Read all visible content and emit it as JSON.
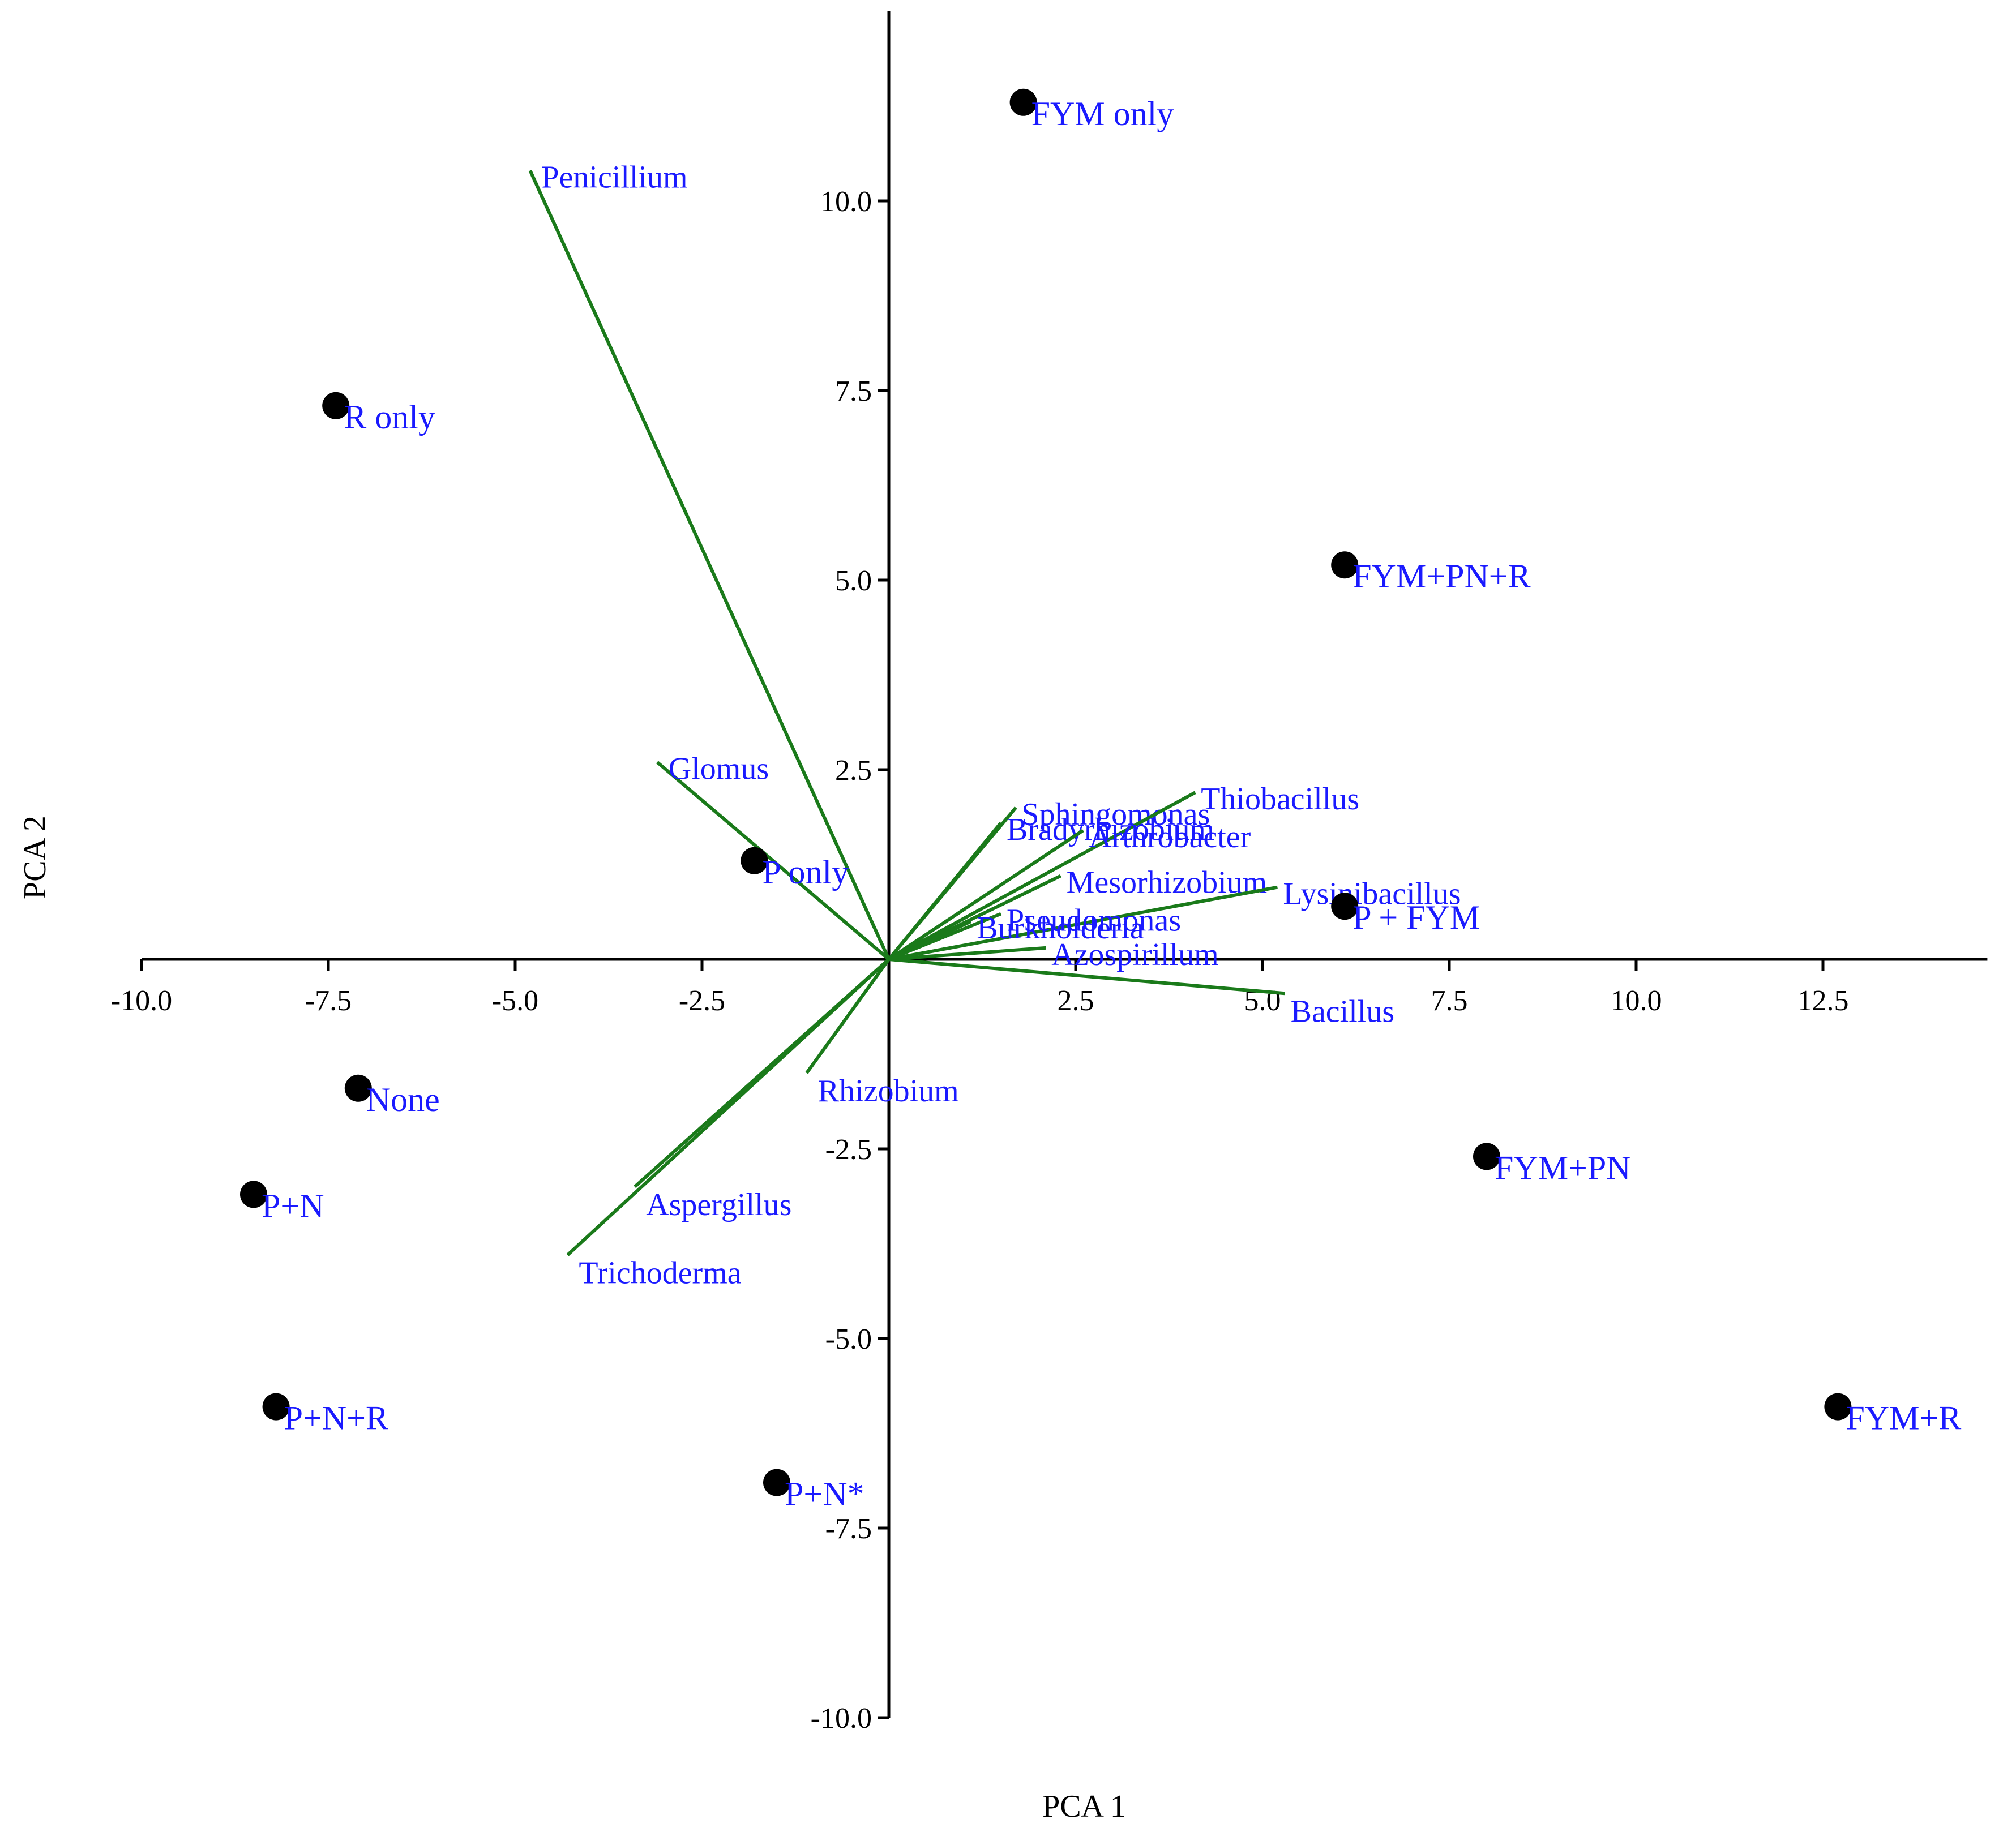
{
  "chart_data": {
    "type": "scatter",
    "xlabel": "PCA 1",
    "ylabel": "PCA 2",
    "xlim": [
      -10.0,
      14.7
    ],
    "ylim": [
      -10.0,
      12.5
    ],
    "x_ticks": [
      "-10.0",
      "-7.5",
      "-5.0",
      "-2.5",
      "2.5",
      "5.0",
      "7.5",
      "10.0",
      "12.5"
    ],
    "y_ticks": [
      "-10.0",
      "-7.5",
      "-5.0",
      "-2.5",
      "2.5",
      "5.0",
      "7.5",
      "10.0"
    ],
    "points": [
      {
        "label": "FYM only",
        "x": 1.8,
        "y": 11.3
      },
      {
        "label": "R only",
        "x": -7.4,
        "y": 7.3
      },
      {
        "label": "FYM+PN+R",
        "x": 6.1,
        "y": 5.2
      },
      {
        "label": "P only",
        "x": -1.8,
        "y": 1.3
      },
      {
        "label": "P + FYM",
        "x": 6.1,
        "y": 0.7
      },
      {
        "label": "None",
        "x": -7.1,
        "y": -1.7
      },
      {
        "label": "P+N",
        "x": -8.5,
        "y": -3.1
      },
      {
        "label": "FYM+PN",
        "x": 8.0,
        "y": -2.6
      },
      {
        "label": "P+N+R",
        "x": -8.2,
        "y": -5.9
      },
      {
        "label": "FYM+R",
        "x": 12.7,
        "y": -5.9
      },
      {
        "label": "P+N*",
        "x": -1.5,
        "y": -6.9
      }
    ],
    "vectors": [
      {
        "label": "Penicillium",
        "x": -4.8,
        "y": 10.4
      },
      {
        "label": "Glomus",
        "x": -3.1,
        "y": 2.6
      },
      {
        "label": "Sphingomonas",
        "x": 1.7,
        "y": 2.0
      },
      {
        "label": "Thiobacillus",
        "x": 4.1,
        "y": 2.2
      },
      {
        "label": "Bradyrhizobium",
        "x": 1.5,
        "y": 1.8
      },
      {
        "label": "Arthrobacter",
        "x": 2.6,
        "y": 1.7
      },
      {
        "label": "Mesorhizobium",
        "x": 2.3,
        "y": 1.1
      },
      {
        "label": "Lysinibacillus",
        "x": 5.2,
        "y": 0.95
      },
      {
        "label": "Pseudomonas",
        "x": 1.5,
        "y": 0.6
      },
      {
        "label": "Burkholderia",
        "x": 1.1,
        "y": 0.5
      },
      {
        "label": "Azospirillum",
        "x": 2.1,
        "y": 0.15
      },
      {
        "label": "Bacillus",
        "x": 5.3,
        "y": -0.45
      },
      {
        "label": "Rhizobium",
        "x": -1.1,
        "y": -1.5
      },
      {
        "label": "Aspergillus",
        "x": -3.4,
        "y": -3.0
      },
      {
        "label": "Trichoderma",
        "x": -4.3,
        "y": -3.9
      }
    ]
  }
}
